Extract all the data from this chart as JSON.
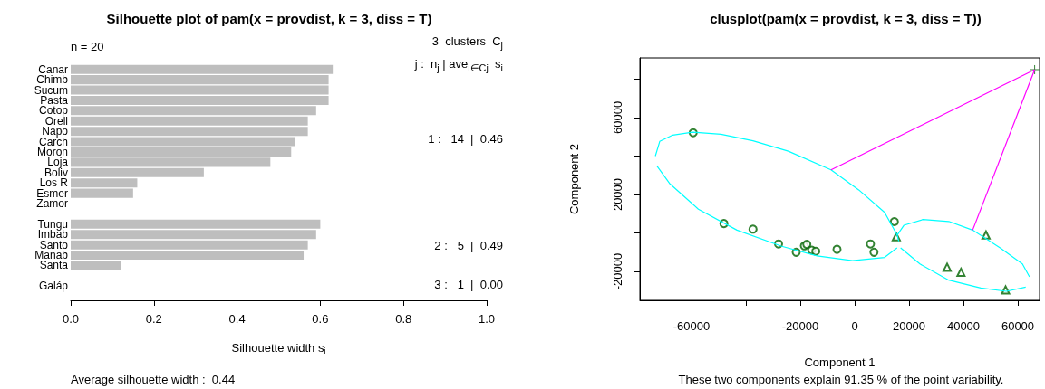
{
  "chart_data": [
    {
      "type": "bar",
      "orientation": "horizontal",
      "title": "Silhouette plot of pam(x = provdist, k = 3, diss = T)",
      "xlabel": "Silhouette width s$_{i}$",
      "categories": [
        "Canar",
        "Chimb",
        "Sucum",
        "Pasta",
        "Cotop",
        "Orell",
        "Napo",
        "Carch",
        "Moron",
        "Loja",
        "Boliv",
        "Los R",
        "Esmer",
        "Zamor",
        null,
        "Tungu",
        "Imbab",
        "Santo",
        "Manab",
        "Santa",
        null,
        "Galáp"
      ],
      "values": [
        0.63,
        0.62,
        0.62,
        0.62,
        0.59,
        0.57,
        0.57,
        0.54,
        0.53,
        0.48,
        0.32,
        0.16,
        0.15,
        0,
        null,
        0.6,
        0.59,
        0.57,
        0.56,
        0.12,
        null,
        0
      ],
      "color": "#bebebe",
      "xlim": [
        0,
        1
      ],
      "xticks": [
        {
          "value": 0,
          "label": "0.0"
        },
        {
          "value": 0.2,
          "label": "0.2"
        },
        {
          "value": 0.4,
          "label": "0.4"
        },
        {
          "value": 0.6,
          "label": "0.6"
        },
        {
          "value": 0.8,
          "label": "0.8"
        },
        {
          "value": 1,
          "label": "1.0"
        }
      ],
      "annotations": [
        "n = 20",
        "3  clusters  C$_{j}$",
        "j :  n$_{j}$ | ave$_{i∈Cj}$  s$_{i}$",
        "1 :   14  |  0.46",
        "2 :   5  |  0.49",
        "3 :   1  |  0.00",
        "Average silhouette width :  0.44"
      ]
    },
    {
      "type": "scatter",
      "title": "clusplot(pam(x = provdist, k = 3, diss = T))",
      "xlabel": "Component 1",
      "ylabel": "Component 2",
      "xlim": [
        -79000,
        68000
      ],
      "ylim": [
        -35000,
        91000
      ],
      "xticks": [
        -60000,
        {
          "value": -40000,
          "label": null
        },
        -20000,
        0,
        20000,
        40000,
        60000
      ],
      "yticks": [
        -20000,
        {
          "value": 0,
          "label": null
        },
        20000,
        {
          "value": 40000,
          "label": null
        },
        60000,
        {
          "value": 80000,
          "label": null
        }
      ],
      "series": [
        {
          "type": "line",
          "color": "#00ffff",
          "marker": "none",
          "x": [
            -73300,
            -71700,
            -66900,
            -59400,
            -49200,
            -37400,
            -24400,
            -8700,
            1500,
            11000,
            15600,
            16200
          ],
          "values": [
            40000,
            47600,
            50900,
            52400,
            51300,
            47900,
            42500,
            32800,
            22400,
            10700,
            -1000,
            -4300
          ]
        },
        {
          "type": "line",
          "color": "#00ffff",
          "marker": "none",
          "x": [
            -72800,
            -68100,
            -57500,
            -43300,
            -26800,
            -13800,
            -800,
            11000,
            15600
          ],
          "values": [
            35000,
            25800,
            12400,
            1500,
            -6900,
            -11900,
            -14400,
            -12700,
            -7700
          ]
        },
        {
          "type": "line",
          "color": "#00ffff",
          "marker": "none",
          "x": [
            15700,
            18100,
            25100,
            34600,
            43400,
            53500,
            61700,
            64300
          ],
          "values": [
            -1000,
            4000,
            7000,
            6000,
            1500,
            -7700,
            -16100,
            -22800
          ]
        },
        {
          "type": "line",
          "color": "#00ffff",
          "marker": "none",
          "x": [
            16900,
            24000,
            34600,
            46400,
            55800,
            62900
          ],
          "values": [
            -7700,
            -16100,
            -24500,
            -28600,
            -30300,
            -28100
          ]
        },
        {
          "type": "line",
          "color": "#ff00ff",
          "marker": "none",
          "x": [
            -8700,
            66200
          ],
          "values": [
            32800,
            84900
          ]
        },
        {
          "type": "line",
          "color": "#ff00ff",
          "marker": "none",
          "x": [
            43400,
            66200
          ],
          "values": [
            1500,
            84900
          ]
        },
        {
          "color": "#006400",
          "marker": "circle",
          "x": [
            -59400,
            -48100,
            -37400,
            -28000,
            -21500,
            -18500,
            -17600,
            -15800,
            -14300,
            -6500,
            5800,
            7100,
            14600
          ],
          "values": [
            52100,
            4900,
            2000,
            -5700,
            -10000,
            -6700,
            -5900,
            -8900,
            -9500,
            -8500,
            -5700,
            -10000,
            5900
          ]
        },
        {
          "color": "#006400",
          "marker": "triangle",
          "x": [
            15300,
            34000,
            39100,
            48300,
            55500
          ],
          "values": [
            -2000,
            -17800,
            -20400,
            -1000,
            -29600
          ]
        },
        {
          "color": "#006400",
          "marker": "cross",
          "x": [
            66200
          ],
          "values": [
            84900
          ]
        }
      ],
      "annotations": [
        "These two components explain 91.35 % of the point variability."
      ]
    }
  ]
}
